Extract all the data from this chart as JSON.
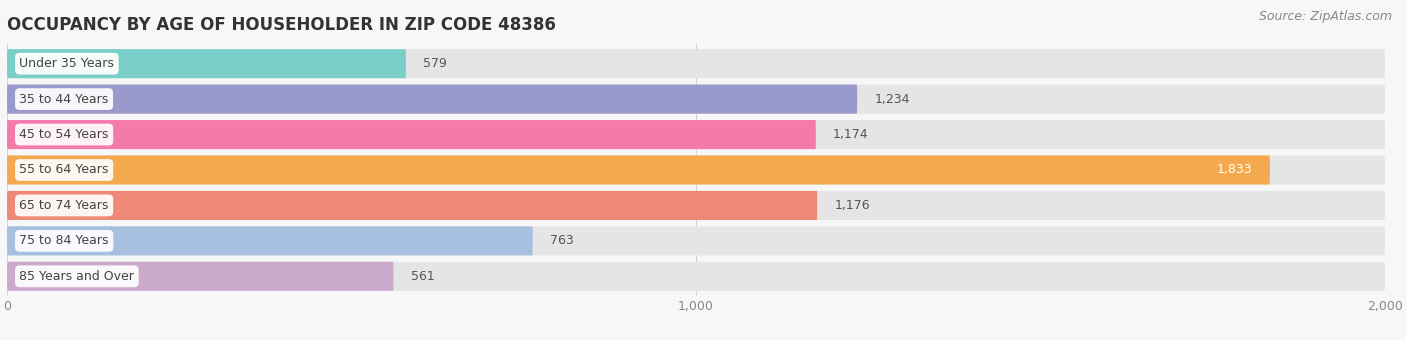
{
  "title": "OCCUPANCY BY AGE OF HOUSEHOLDER IN ZIP CODE 48386",
  "source": "Source: ZipAtlas.com",
  "categories": [
    "Under 35 Years",
    "35 to 44 Years",
    "45 to 54 Years",
    "55 to 64 Years",
    "65 to 74 Years",
    "75 to 84 Years",
    "85 Years and Over"
  ],
  "values": [
    579,
    1234,
    1174,
    1833,
    1176,
    763,
    561
  ],
  "bar_colors": [
    "#79cfc8",
    "#9999cc",
    "#f47aaa",
    "#f5a94e",
    "#f08878",
    "#a8c0e0",
    "#ccaacc"
  ],
  "background_color": "#f7f7f7",
  "bar_bg_color": "#e5e5e5",
  "xlim": [
    0,
    2000
  ],
  "xticks": [
    0,
    1000,
    2000
  ],
  "title_fontsize": 12,
  "label_fontsize": 9,
  "value_fontsize": 9,
  "source_fontsize": 9
}
